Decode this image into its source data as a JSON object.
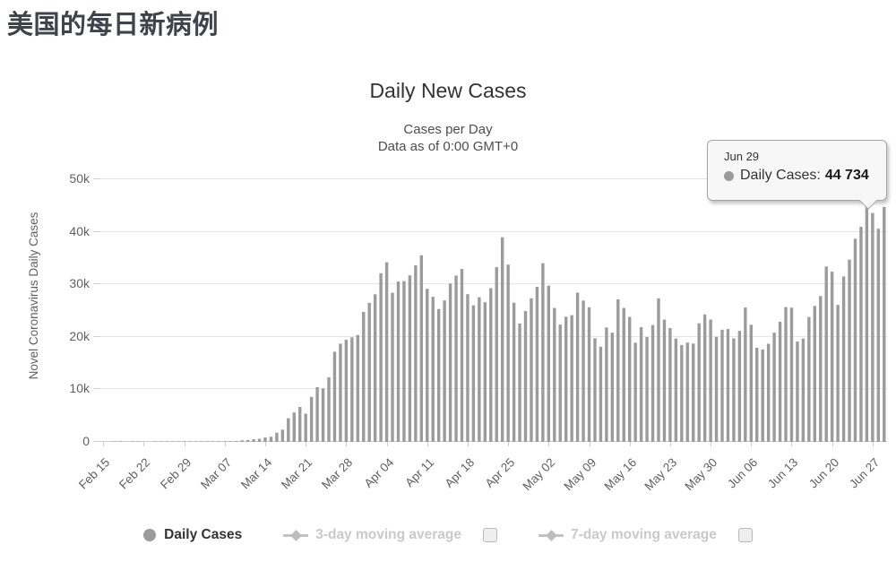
{
  "page": {
    "title": "美国的每日新病例"
  },
  "chart": {
    "title": "Daily New Cases",
    "subtitle1": "Cases per Day",
    "subtitle2": "Data as of 0:00 GMT+0",
    "y_axis_title": "Novel Coronavirus Daily Cases"
  },
  "tooltip": {
    "date": "Jun 29",
    "label": "Daily Cases:",
    "value": "44 734"
  },
  "legend": {
    "daily_cases": "Daily Cases",
    "avg3": "3-day moving average",
    "avg7": "7-day moving average"
  },
  "colors": {
    "bar": "#9b9b9b",
    "grid": "#e6e6e6",
    "axis": "#cccccc",
    "axis_text": "#606060",
    "disabled_text": "#c9c9c9",
    "title_text": "#3e444c"
  },
  "chart_data": {
    "type": "bar",
    "title": "Daily New Cases",
    "subtitle": "Cases per Day — Data as of 0:00 GMT+0",
    "xlabel": "",
    "ylabel": "Novel Coronavirus Daily Cases",
    "ylim": [
      0,
      50000
    ],
    "grid": true,
    "legend_position": "bottom",
    "ytick_labels": [
      "0",
      "10k",
      "20k",
      "30k",
      "40k",
      "50k"
    ],
    "xtick_labels": [
      "Feb 15",
      "Feb 22",
      "Feb 29",
      "Mar 07",
      "Mar 14",
      "Mar 21",
      "Mar 28",
      "Apr 04",
      "Apr 11",
      "Apr 18",
      "Apr 25",
      "May 02",
      "May 09",
      "May 16",
      "May 23",
      "May 30",
      "Jun 06",
      "Jun 13",
      "Jun 20",
      "Jun 27"
    ],
    "highlight": {
      "x": "Jun 29",
      "series": "Daily Cases",
      "value": 44734
    },
    "x": [
      "Feb 15",
      "Feb 16",
      "Feb 17",
      "Feb 18",
      "Feb 19",
      "Feb 20",
      "Feb 21",
      "Feb 22",
      "Feb 23",
      "Feb 24",
      "Feb 25",
      "Feb 26",
      "Feb 27",
      "Feb 28",
      "Feb 29",
      "Mar 01",
      "Mar 02",
      "Mar 03",
      "Mar 04",
      "Mar 05",
      "Mar 06",
      "Mar 07",
      "Mar 08",
      "Mar 09",
      "Mar 10",
      "Mar 11",
      "Mar 12",
      "Mar 13",
      "Mar 14",
      "Mar 15",
      "Mar 16",
      "Mar 17",
      "Mar 18",
      "Mar 19",
      "Mar 20",
      "Mar 21",
      "Mar 22",
      "Mar 23",
      "Mar 24",
      "Mar 25",
      "Mar 26",
      "Mar 27",
      "Mar 28",
      "Mar 29",
      "Mar 30",
      "Mar 31",
      "Apr 01",
      "Apr 02",
      "Apr 03",
      "Apr 04",
      "Apr 05",
      "Apr 06",
      "Apr 07",
      "Apr 08",
      "Apr 09",
      "Apr 10",
      "Apr 11",
      "Apr 12",
      "Apr 13",
      "Apr 14",
      "Apr 15",
      "Apr 16",
      "Apr 17",
      "Apr 18",
      "Apr 19",
      "Apr 20",
      "Apr 21",
      "Apr 22",
      "Apr 23",
      "Apr 24",
      "Apr 25",
      "Apr 26",
      "Apr 27",
      "Apr 28",
      "Apr 29",
      "Apr 30",
      "May 01",
      "May 02",
      "May 03",
      "May 04",
      "May 05",
      "May 06",
      "May 07",
      "May 08",
      "May 09",
      "May 10",
      "May 11",
      "May 12",
      "May 13",
      "May 14",
      "May 15",
      "May 16",
      "May 17",
      "May 18",
      "May 19",
      "May 20",
      "May 21",
      "May 22",
      "May 23",
      "May 24",
      "May 25",
      "May 26",
      "May 27",
      "May 28",
      "May 29",
      "May 30",
      "May 31",
      "Jun 01",
      "Jun 02",
      "Jun 03",
      "Jun 04",
      "Jun 05",
      "Jun 06",
      "Jun 07",
      "Jun 08",
      "Jun 09",
      "Jun 10",
      "Jun 11",
      "Jun 12",
      "Jun 13",
      "Jun 14",
      "Jun 15",
      "Jun 16",
      "Jun 17",
      "Jun 18",
      "Jun 19",
      "Jun 20",
      "Jun 21",
      "Jun 22",
      "Jun 23",
      "Jun 24",
      "Jun 25",
      "Jun 26",
      "Jun 27",
      "Jun 28",
      "Jun 29"
    ],
    "series": [
      {
        "name": "Daily Cases",
        "values": [
          0,
          0,
          1,
          1,
          0,
          1,
          19,
          0,
          0,
          1,
          2,
          6,
          1,
          4,
          7,
          23,
          20,
          33,
          77,
          66,
          105,
          92,
          117,
          168,
          287,
          351,
          511,
          587,
          843,
          983,
          1748,
          2325,
          4509,
          5594,
          6660,
          5374,
          8570,
          10410,
          10180,
          12290,
          17166,
          18691,
          19452,
          19913,
          20353,
          24742,
          26473,
          28103,
          32105,
          34196,
          28391,
          30561,
          30613,
          31709,
          33606,
          35527,
          29145,
          27620,
          25306,
          26930,
          30148,
          31667,
          32922,
          28123,
          25995,
          27539,
          26597,
          29266,
          33264,
          38958,
          33753,
          26509,
          22541,
          24906,
          27326,
          29517,
          34012,
          29744,
          25501,
          22335,
          23841,
          24128,
          28420,
          26906,
          25621,
          19731,
          18117,
          21773,
          20798,
          27143,
          25508,
          23792,
          18873,
          21841,
          19970,
          22245,
          27326,
          23285,
          21678,
          19680,
          18439,
          18910,
          18721,
          22577,
          24266,
          23290,
          20007,
          21362,
          21485,
          19699,
          21140,
          25580,
          22302,
          17919,
          17598,
          18679,
          20793,
          22867,
          25663,
          25544,
          19125,
          19680,
          23774,
          25894,
          27762,
          33388,
          32411,
          26079,
          31496,
          34700,
          38672,
          40949,
          46042,
          43581,
          40588,
          44734
        ]
      },
      {
        "name": "3-day moving average",
        "values": [],
        "visible": false
      },
      {
        "name": "7-day moving average",
        "values": [],
        "visible": false
      }
    ]
  }
}
